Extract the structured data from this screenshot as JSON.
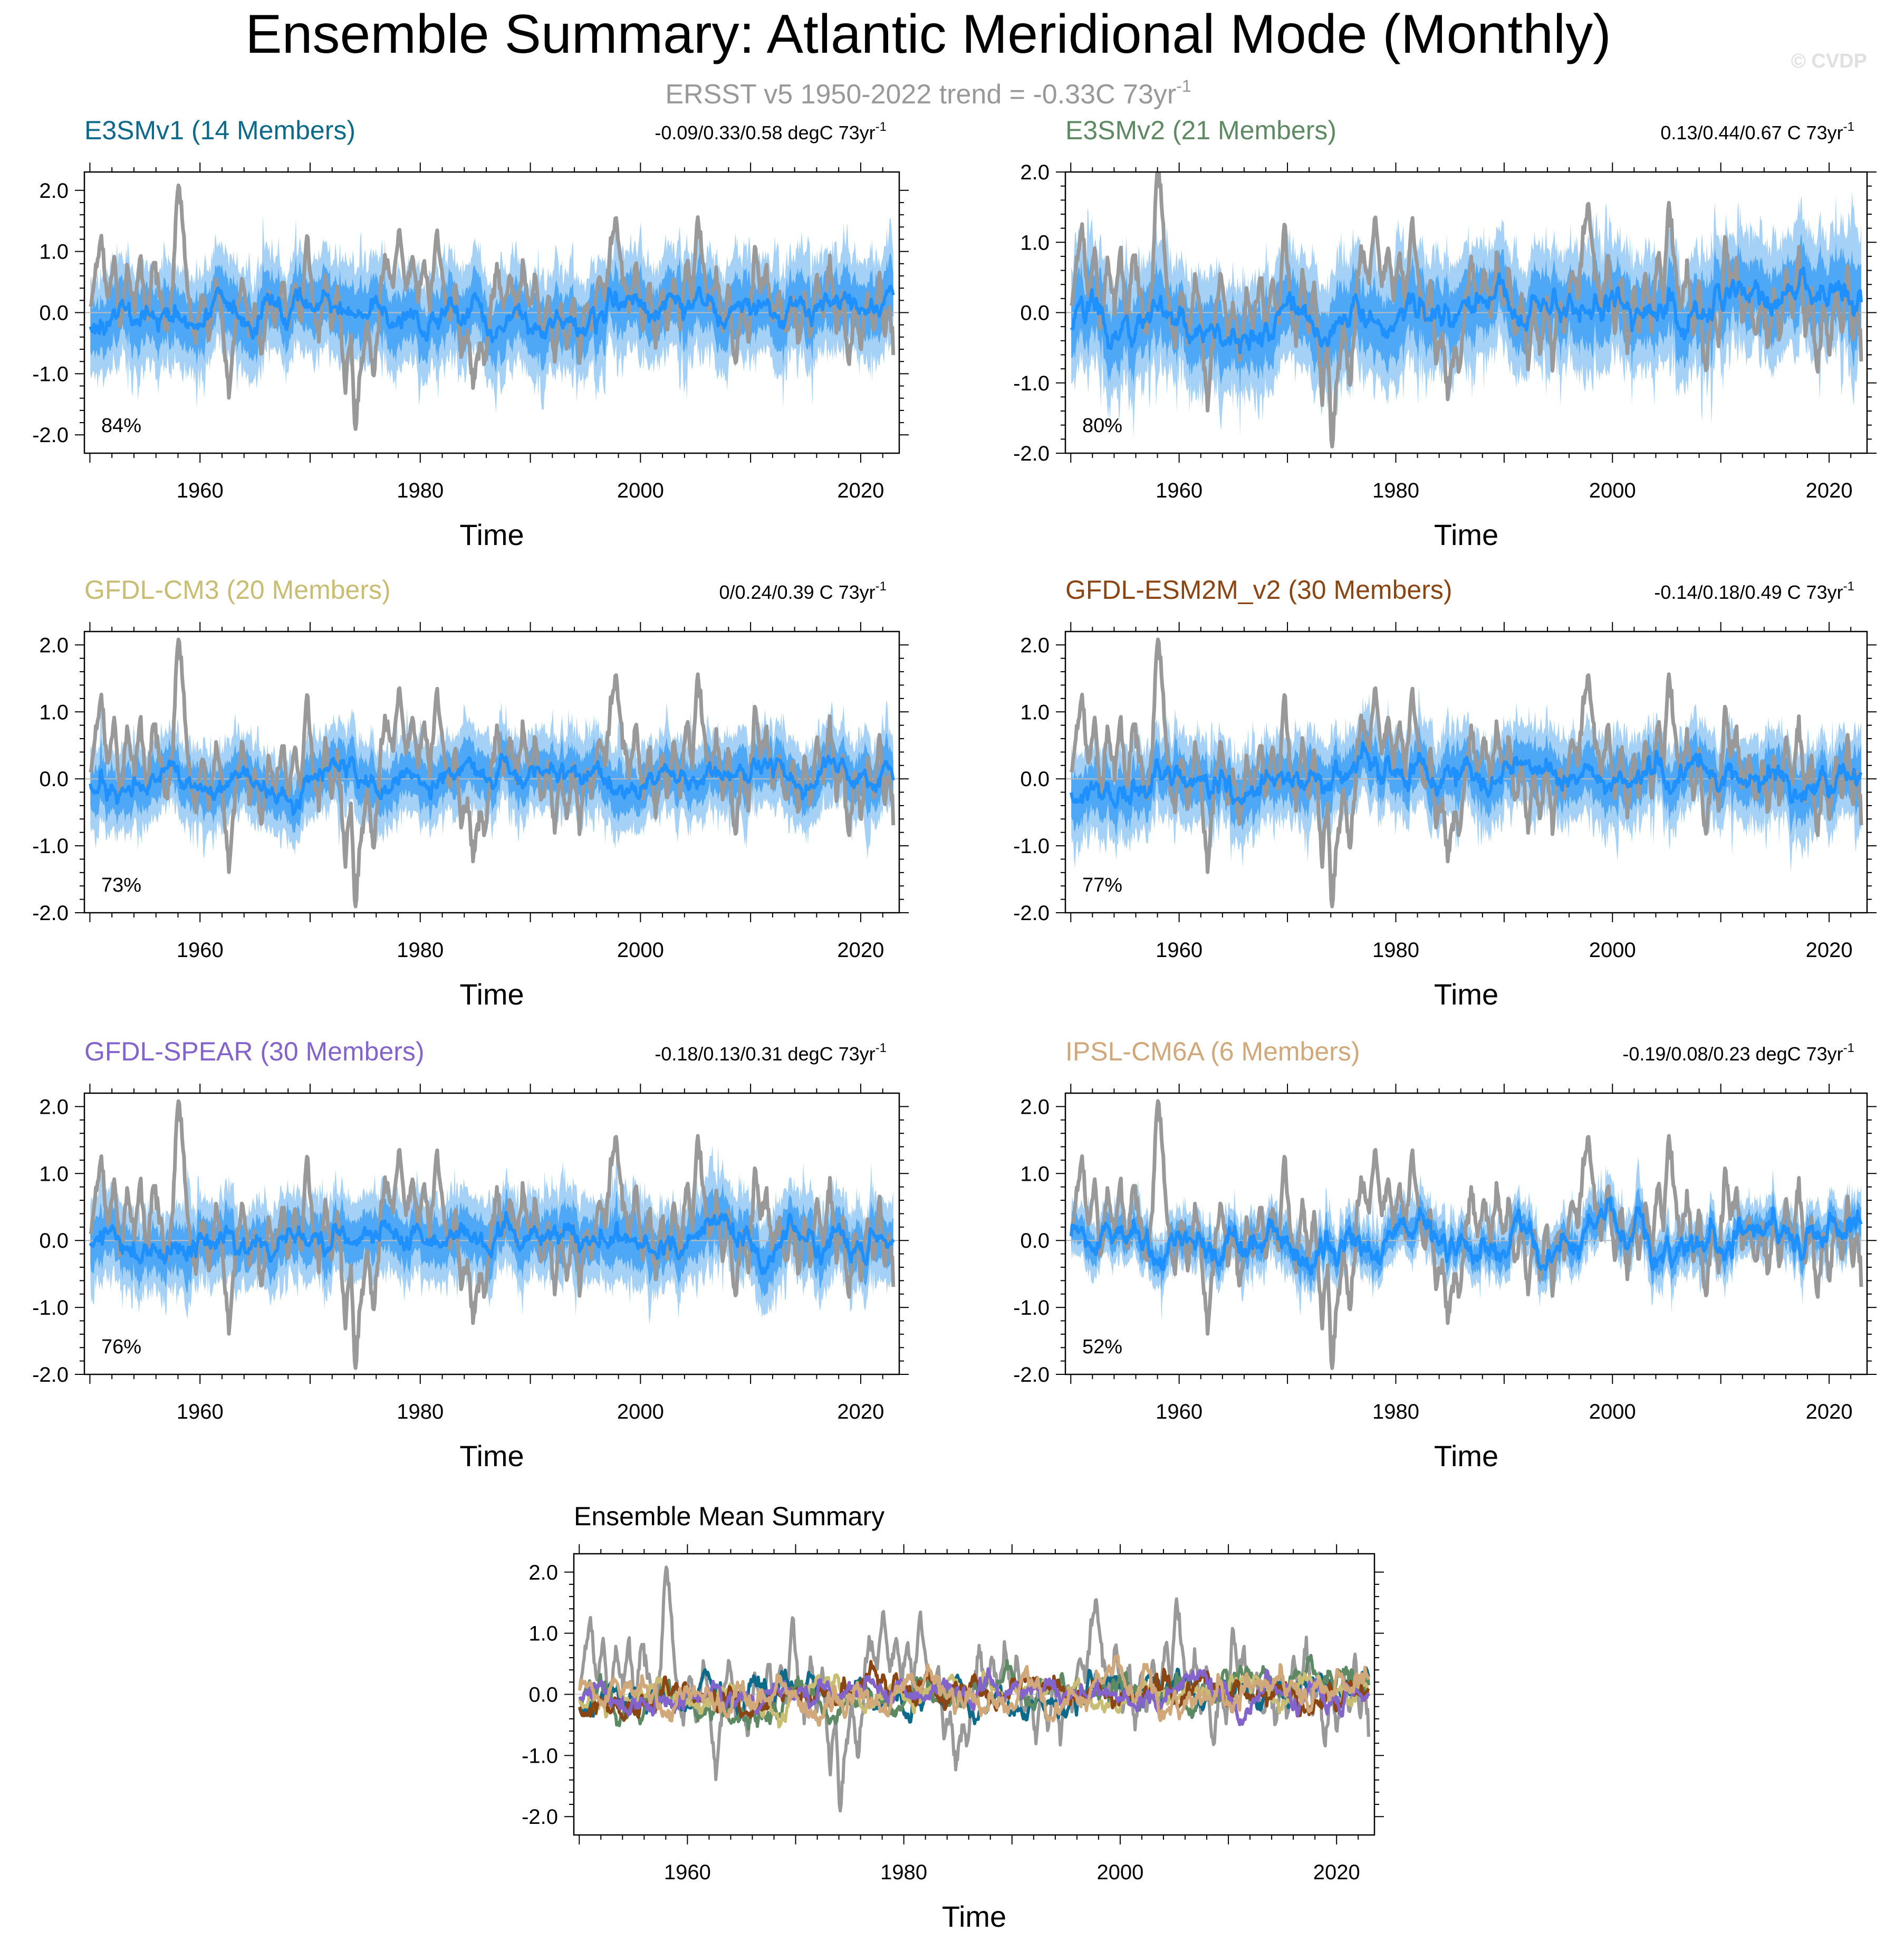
{
  "figure": {
    "title": "Ensemble Summary: Atlantic Meridional Mode (Monthly)",
    "subtitle_main": "ERSST v5 1950-2022 trend = -0.33C 73yr",
    "subtitle_sup": "-1",
    "watermark": "© CVDP"
  },
  "colors": {
    "obs": "#999999",
    "ens_mean": "#1e90ff",
    "band_outer": "#a6d1f7",
    "band_inner": "#4fa8f5"
  },
  "chart_data": [
    {
      "type": "line",
      "title": "E3SMv1 (14 Members)",
      "title_color": "#0e6a8a",
      "trend_main": "-0.09/0.33/0.58 degC 73yr",
      "trend_sup": "-1",
      "pct_label": "84%",
      "xlabel": "Time",
      "xlim": [
        1949.5,
        2023.5
      ],
      "ylim": [
        -2.3,
        2.3
      ],
      "xticks": [
        1960,
        1980,
        2000,
        2020
      ],
      "xtick_labels": [
        "1960",
        "1980",
        "2000",
        "2020"
      ],
      "yticks": [
        2.0,
        1.0,
        0.0,
        -1.0,
        -2.0
      ],
      "ytick_labels": [
        "2.0",
        "1.0",
        "0.0",
        "-1.0",
        "-2.0"
      ],
      "band_width": 0.9,
      "mean_amp": 0.18,
      "mean_trend": 0.0045,
      "seed": 11
    },
    {
      "type": "line",
      "title": "E3SMv2 (21 Members)",
      "title_color": "#5e8a63",
      "trend_main": "0.13/0.44/0.67 C 73yr",
      "trend_sup": "-1",
      "pct_label": "80%",
      "xlabel": "Time",
      "xlim": [
        1949.5,
        2023.5
      ],
      "ylim": [
        -2.0,
        2.0
      ],
      "xticks": [
        1960,
        1980,
        2000,
        2020
      ],
      "xtick_labels": [
        "1960",
        "1980",
        "2000",
        "2020"
      ],
      "yticks": [
        2.0,
        1.0,
        0.0,
        -1.0,
        -2.0
      ],
      "ytick_labels": [
        "2.0",
        "1.0",
        "0.0",
        "-1.0",
        "-2.0"
      ],
      "band_width": 0.9,
      "mean_amp": 0.18,
      "mean_trend": 0.006,
      "seed": 23
    },
    {
      "type": "line",
      "title": "GFDL-CM3 (20 Members)",
      "title_color": "#c8bd72",
      "trend_main": "0/0.24/0.39 C 73yr",
      "trend_sup": "-1",
      "pct_label": "73%",
      "xlabel": "Time",
      "xlim": [
        1949.5,
        2023.5
      ],
      "ylim": [
        -2.0,
        2.2
      ],
      "xticks": [
        1960,
        1980,
        2000,
        2020
      ],
      "xtick_labels": [
        "1960",
        "1980",
        "2000",
        "2020"
      ],
      "yticks": [
        2.0,
        1.0,
        0.0,
        -1.0,
        -2.0
      ],
      "ytick_labels": [
        "2.0",
        "1.0",
        "0.0",
        "-1.0",
        "-2.0"
      ],
      "band_width": 0.65,
      "mean_amp": 0.15,
      "mean_trend": 0.004,
      "seed": 37
    },
    {
      "type": "line",
      "title": "GFDL-ESM2M_v2 (30 Members)",
      "title_color": "#8b4513",
      "trend_main": "-0.14/0.18/0.49 C 73yr",
      "trend_sup": "-1",
      "pct_label": "77%",
      "xlabel": "Time",
      "xlim": [
        1949.5,
        2023.5
      ],
      "ylim": [
        -2.0,
        2.2
      ],
      "xticks": [
        1960,
        1980,
        2000,
        2020
      ],
      "xtick_labels": [
        "1960",
        "1980",
        "2000",
        "2020"
      ],
      "yticks": [
        2.0,
        1.0,
        0.0,
        -1.0,
        -2.0
      ],
      "ytick_labels": [
        "2.0",
        "1.0",
        "0.0",
        "-1.0",
        "-2.0"
      ],
      "band_width": 0.7,
      "mean_amp": 0.16,
      "mean_trend": 0.0025,
      "seed": 41
    },
    {
      "type": "line",
      "title": "GFDL-SPEAR (30 Members)",
      "title_color": "#8363cc",
      "trend_main": "-0.18/0.13/0.31 degC 73yr",
      "trend_sup": "-1",
      "pct_label": "76%",
      "xlabel": "Time",
      "xlim": [
        1949.5,
        2023.5
      ],
      "ylim": [
        -2.0,
        2.2
      ],
      "xticks": [
        1960,
        1980,
        2000,
        2020
      ],
      "xtick_labels": [
        "1960",
        "1980",
        "2000",
        "2020"
      ],
      "yticks": [
        2.0,
        1.0,
        0.0,
        -1.0,
        -2.0
      ],
      "ytick_labels": [
        "2.0",
        "1.0",
        "0.0",
        "-1.0",
        "-2.0"
      ],
      "band_width": 0.7,
      "mean_amp": 0.15,
      "mean_trend": 0.0018,
      "seed": 53
    },
    {
      "type": "line",
      "title": "IPSL-CM6A (6 Members)",
      "title_color": "#d1a87a",
      "trend_main": "-0.19/0.08/0.23 degC 73yr",
      "trend_sup": "-1",
      "pct_label": "52%",
      "xlabel": "Time",
      "xlim": [
        1949.5,
        2023.5
      ],
      "ylim": [
        -2.0,
        2.2
      ],
      "xticks": [
        1960,
        1980,
        2000,
        2020
      ],
      "xtick_labels": [
        "1960",
        "1980",
        "2000",
        "2020"
      ],
      "yticks": [
        2.0,
        1.0,
        0.0,
        -1.0,
        -2.0
      ],
      "ytick_labels": [
        "2.0",
        "1.0",
        "0.0",
        "-1.0",
        "-2.0"
      ],
      "band_width": 0.45,
      "mean_amp": 0.2,
      "mean_trend": 0.0012,
      "seed": 67
    },
    {
      "type": "line",
      "title": "Ensemble Mean Summary",
      "title_color": "#000000",
      "xlabel": "Time",
      "xlim": [
        1949.5,
        2023.5
      ],
      "ylim": [
        -2.3,
        2.3
      ],
      "xticks": [
        1960,
        1980,
        2000,
        2020
      ],
      "xtick_labels": [
        "1960",
        "1980",
        "2000",
        "2020"
      ],
      "yticks": [
        2.0,
        1.0,
        0.0,
        -1.0,
        -2.0
      ],
      "ytick_labels": [
        "2.0",
        "1.0",
        "0.0",
        "-1.0",
        "-2.0"
      ],
      "series": [
        {
          "name": "E3SMv1",
          "color": "#0e6a8a",
          "seed": 11
        },
        {
          "name": "E3SMv2",
          "color": "#5e8a63",
          "seed": 23
        },
        {
          "name": "GFDL-CM3",
          "color": "#c8bd72",
          "seed": 37
        },
        {
          "name": "GFDL-ESM2M_v2",
          "color": "#8b4513",
          "seed": 41
        },
        {
          "name": "GFDL-SPEAR",
          "color": "#8363cc",
          "seed": 53
        },
        {
          "name": "IPSL-CM6A",
          "color": "#d1a87a",
          "seed": 67
        }
      ]
    }
  ],
  "observed": {
    "name": "ERSSTv5",
    "anchors": [
      [
        1950.0,
        0.0
      ],
      [
        1950.4,
        0.6
      ],
      [
        1951.0,
        1.25
      ],
      [
        1951.6,
        0.2
      ],
      [
        1952.2,
        0.9
      ],
      [
        1952.8,
        -0.3
      ],
      [
        1953.4,
        0.8
      ],
      [
        1954.0,
        0.1
      ],
      [
        1954.6,
        0.9
      ],
      [
        1955.2,
        -0.2
      ],
      [
        1955.8,
        0.85
      ],
      [
        1956.4,
        0.3
      ],
      [
        1956.9,
        -0.4
      ],
      [
        1957.5,
        0.4
      ],
      [
        1958.0,
        2.1
      ],
      [
        1958.4,
        1.6
      ],
      [
        1958.9,
        0.3
      ],
      [
        1959.5,
        -0.5
      ],
      [
        1960.2,
        0.3
      ],
      [
        1960.8,
        -0.4
      ],
      [
        1961.5,
        0.5
      ],
      [
        1962.0,
        -0.1
      ],
      [
        1962.6,
        -1.3
      ],
      [
        1963.2,
        -0.2
      ],
      [
        1963.9,
        0.6
      ],
      [
        1964.5,
        -0.4
      ],
      [
        1965.0,
        0.2
      ],
      [
        1965.6,
        -0.8
      ],
      [
        1966.2,
        0.3
      ],
      [
        1966.8,
        -0.2
      ],
      [
        1967.5,
        0.6
      ],
      [
        1968.0,
        -0.3
      ],
      [
        1968.6,
        0.5
      ],
      [
        1969.2,
        -0.2
      ],
      [
        1969.7,
        1.3
      ],
      [
        1970.2,
        0.2
      ],
      [
        1970.8,
        -0.4
      ],
      [
        1971.4,
        0.6
      ],
      [
        1971.9,
        -0.3
      ],
      [
        1972.5,
        0.3
      ],
      [
        1973.2,
        -1.2
      ],
      [
        1973.7,
        -0.4
      ],
      [
        1974.1,
        -1.95
      ],
      [
        1974.6,
        -0.9
      ],
      [
        1975.2,
        -0.2
      ],
      [
        1975.8,
        -1.1
      ],
      [
        1976.4,
        0.4
      ],
      [
        1976.9,
        0.9
      ],
      [
        1977.5,
        0.4
      ],
      [
        1978.1,
        1.4
      ],
      [
        1978.7,
        0.4
      ],
      [
        1979.3,
        0.9
      ],
      [
        1979.8,
        0.2
      ],
      [
        1980.3,
        0.9
      ],
      [
        1980.9,
        0.1
      ],
      [
        1981.5,
        1.35
      ],
      [
        1982.0,
        0.6
      ],
      [
        1982.6,
        -0.2
      ],
      [
        1983.2,
        0.5
      ],
      [
        1983.7,
        -0.7
      ],
      [
        1984.3,
        -0.3
      ],
      [
        1984.8,
        -1.1
      ],
      [
        1985.4,
        -0.6
      ],
      [
        1985.9,
        -0.8
      ],
      [
        1986.5,
        0.2
      ],
      [
        1987.0,
        0.7
      ],
      [
        1987.6,
        0.1
      ],
      [
        1988.2,
        0.6
      ],
      [
        1988.8,
        -0.1
      ],
      [
        1989.3,
        0.8
      ],
      [
        1989.9,
        0.0
      ],
      [
        1990.5,
        0.6
      ],
      [
        1991.0,
        -0.4
      ],
      [
        1991.6,
        0.3
      ],
      [
        1992.2,
        -0.8
      ],
      [
        1992.7,
        0.1
      ],
      [
        1993.3,
        -0.6
      ],
      [
        1993.9,
        0.2
      ],
      [
        1994.5,
        -0.7
      ],
      [
        1995.0,
        0.2
      ],
      [
        1995.6,
        -0.3
      ],
      [
        1996.2,
        0.6
      ],
      [
        1996.8,
        0.2
      ],
      [
        1997.3,
        1.1
      ],
      [
        1997.8,
        1.55
      ],
      [
        1998.4,
        0.6
      ],
      [
        1999.0,
        0.0
      ],
      [
        1999.6,
        0.9
      ],
      [
        2000.2,
        -0.3
      ],
      [
        2000.8,
        0.5
      ],
      [
        2001.4,
        -0.6
      ],
      [
        2001.9,
        0.4
      ],
      [
        2002.5,
        -0.3
      ],
      [
        2003.0,
        0.6
      ],
      [
        2003.6,
        -0.2
      ],
      [
        2004.2,
        0.9
      ],
      [
        2004.7,
        0.2
      ],
      [
        2005.2,
        1.6
      ],
      [
        2005.7,
        0.7
      ],
      [
        2006.3,
        0.0
      ],
      [
        2006.9,
        0.7
      ],
      [
        2007.5,
        -0.4
      ],
      [
        2008.0,
        0.5
      ],
      [
        2008.6,
        -1.0
      ],
      [
        2009.2,
        0.2
      ],
      [
        2009.8,
        -0.4
      ],
      [
        2010.4,
        1.1
      ],
      [
        2010.9,
        0.3
      ],
      [
        2011.5,
        0.7
      ],
      [
        2012.0,
        -0.2
      ],
      [
        2012.6,
        0.4
      ],
      [
        2013.2,
        -0.4
      ],
      [
        2013.8,
        0.3
      ],
      [
        2014.4,
        -0.5
      ],
      [
        2014.9,
        0.3
      ],
      [
        2015.5,
        -0.4
      ],
      [
        2016.0,
        0.6
      ],
      [
        2016.6,
        -0.1
      ],
      [
        2017.2,
        0.9
      ],
      [
        2017.8,
        -0.3
      ],
      [
        2018.4,
        0.3
      ],
      [
        2018.9,
        -0.9
      ],
      [
        2019.5,
        0.2
      ],
      [
        2020.0,
        -0.6
      ],
      [
        2020.6,
        0.3
      ],
      [
        2021.2,
        -0.3
      ],
      [
        2021.7,
        0.6
      ],
      [
        2022.2,
        -0.4
      ],
      [
        2022.6,
        0.1
      ],
      [
        2023.0,
        -0.7
      ]
    ]
  }
}
